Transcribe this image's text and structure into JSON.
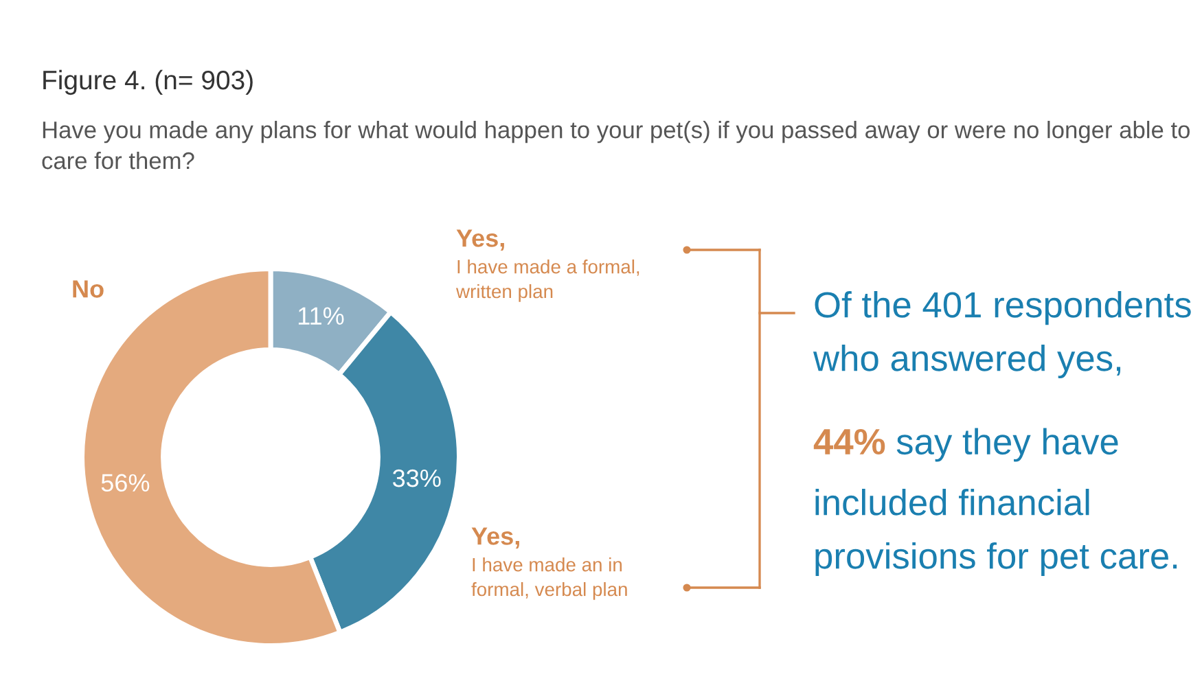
{
  "chart_data": {
    "type": "donut",
    "title": "Figure 4. (n= 903)",
    "subtitle": "Have you made any plans for what would happen to your pet(s) if you passed away or were no longer able to care for them?",
    "categories": [
      "Yes,\nI have made a formal,\nwritten plan",
      "Yes,\nI have made an in\nformal, verbal plan",
      "No"
    ],
    "values": [
      11,
      33,
      56
    ],
    "colors": [
      "#8fb0c4",
      "#3f87a6",
      "#e4aa7e"
    ],
    "value_labels": [
      "11%",
      "33%",
      "56%"
    ],
    "annotations": [
      "Of the 401 respondents\nwho answered yes,",
      "44%",
      " say they have\nincluded financial\nprovisions for pet care."
    ]
  }
}
